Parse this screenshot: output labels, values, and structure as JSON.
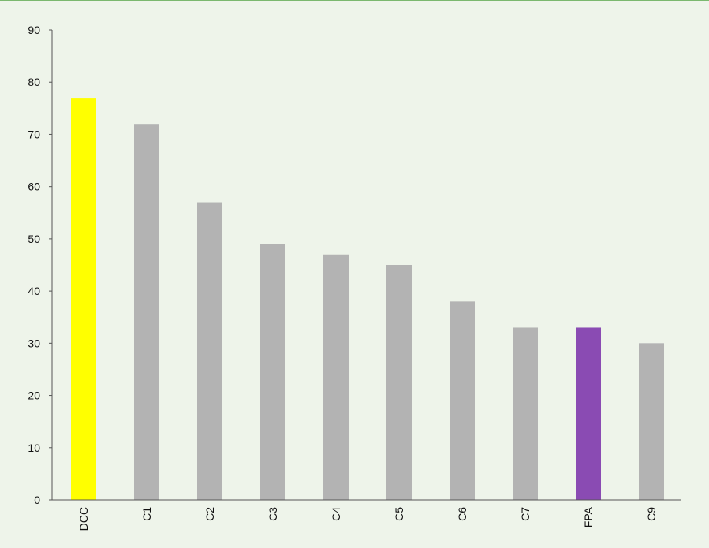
{
  "chart_data": {
    "type": "bar",
    "title": "",
    "xlabel": "",
    "ylabel": "",
    "categories": [
      "DCC",
      "C1",
      "C2",
      "C3",
      "C4",
      "C5",
      "C6",
      "C7",
      "FPA",
      "C9"
    ],
    "values": [
      77,
      72,
      57,
      49,
      47,
      45,
      38,
      33,
      33,
      30
    ],
    "bar_colors": [
      "#ffff00",
      "#b3b3b3",
      "#b3b3b3",
      "#b3b3b3",
      "#b3b3b3",
      "#b3b3b3",
      "#b3b3b3",
      "#b3b3b3",
      "#8a4bb3",
      "#b3b3b3"
    ],
    "ylim": [
      0,
      90
    ],
    "yticks": [
      0,
      10,
      20,
      30,
      40,
      50,
      60,
      70,
      80,
      90
    ],
    "grid": false,
    "legend": "none",
    "background": "#eef4ea",
    "border_color": "#7bb86f"
  }
}
